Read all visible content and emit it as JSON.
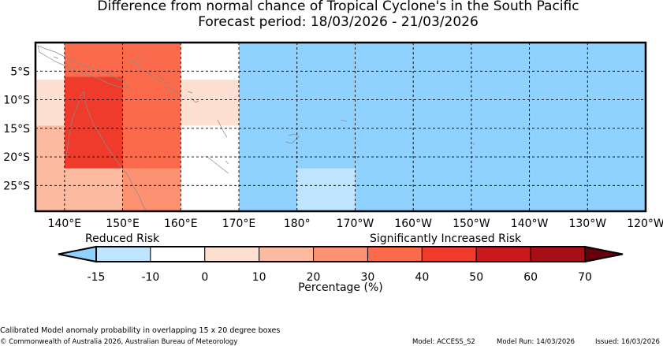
{
  "title": {
    "line1": "Difference from normal chance of Tropical Cyclone's in the South Pacific",
    "line2": "Forecast period: 18/03/2026 - 21/03/2026"
  },
  "map": {
    "lon_range": [
      135,
      240
    ],
    "lat_range": [
      -29.5,
      0
    ],
    "x_ticks": [
      "140°E",
      "150°E",
      "160°E",
      "170°E",
      "180°",
      "170°W",
      "160°W",
      "150°W",
      "140°W",
      "130°W",
      "120°W"
    ],
    "y_ticks": [
      "5°S",
      "10°S",
      "15°S",
      "20°S",
      "25°S"
    ],
    "gridlines": true,
    "cells": [
      {
        "lon": [
          140,
          160
        ],
        "lat": [
          -29.5,
          0
        ],
        "value": 40,
        "color": "#fb6a4a"
      },
      {
        "lon": [
          135,
          150
        ],
        "lat": [
          -29.5,
          -14.5
        ],
        "value": 20,
        "color": "#fcbba1"
      },
      {
        "lon": [
          135,
          150
        ],
        "lat": [
          -14.5,
          -6.5
        ],
        "value": 10,
        "color": "#fee0d2"
      },
      {
        "lon": [
          140,
          150
        ],
        "lat": [
          -22,
          -6
        ],
        "value": 45,
        "color": "#ef3b2c"
      },
      {
        "lon": [
          150,
          160
        ],
        "lat": [
          -22,
          -6
        ],
        "value": 35,
        "color": "#fb6a4a"
      },
      {
        "lon": [
          150,
          160
        ],
        "lat": [
          -29.5,
          -22
        ],
        "value": 30,
        "color": "#fc9272"
      },
      {
        "lon": [
          160,
          170
        ],
        "lat": [
          -14.5,
          -6.5
        ],
        "value": 5,
        "color": "#fee0d2"
      },
      {
        "lon": [
          170,
          240
        ],
        "lat": [
          -29.5,
          0
        ],
        "value": -15,
        "color": "#8fd1ff"
      },
      {
        "lon": [
          180,
          190
        ],
        "lat": [
          -29.5,
          -22
        ],
        "value": -10,
        "color": "#bee4ff"
      }
    ]
  },
  "colorbar": {
    "label_left": "Reduced Risk",
    "label_right": "Significantly Increased Risk",
    "title": "Percentage (%)",
    "tick_labels": [
      "-15",
      "-10",
      "0",
      "10",
      "20",
      "30",
      "40",
      "50",
      "60",
      "70"
    ],
    "segments": [
      "#bee4ff",
      "#ffffff",
      "#fee0d2",
      "#fcbba1",
      "#fc9272",
      "#fb6a4a",
      "#ef3b2c",
      "#cb181d",
      "#a50f15"
    ],
    "extend_low_color": "#8fd1ff",
    "extend_high_color": "#67000d"
  },
  "footer": {
    "caption": "Calibrated Model anomaly probability in overlapping 15 x 20 degree boxes",
    "copyright": "© Commonwealth of Australia 2026, Australian Bureau of Meteorology",
    "model": "Model: ACCESS_S2",
    "model_run": "Model Run: 14/03/2026",
    "issued": "Issued: 16/03/2026"
  }
}
